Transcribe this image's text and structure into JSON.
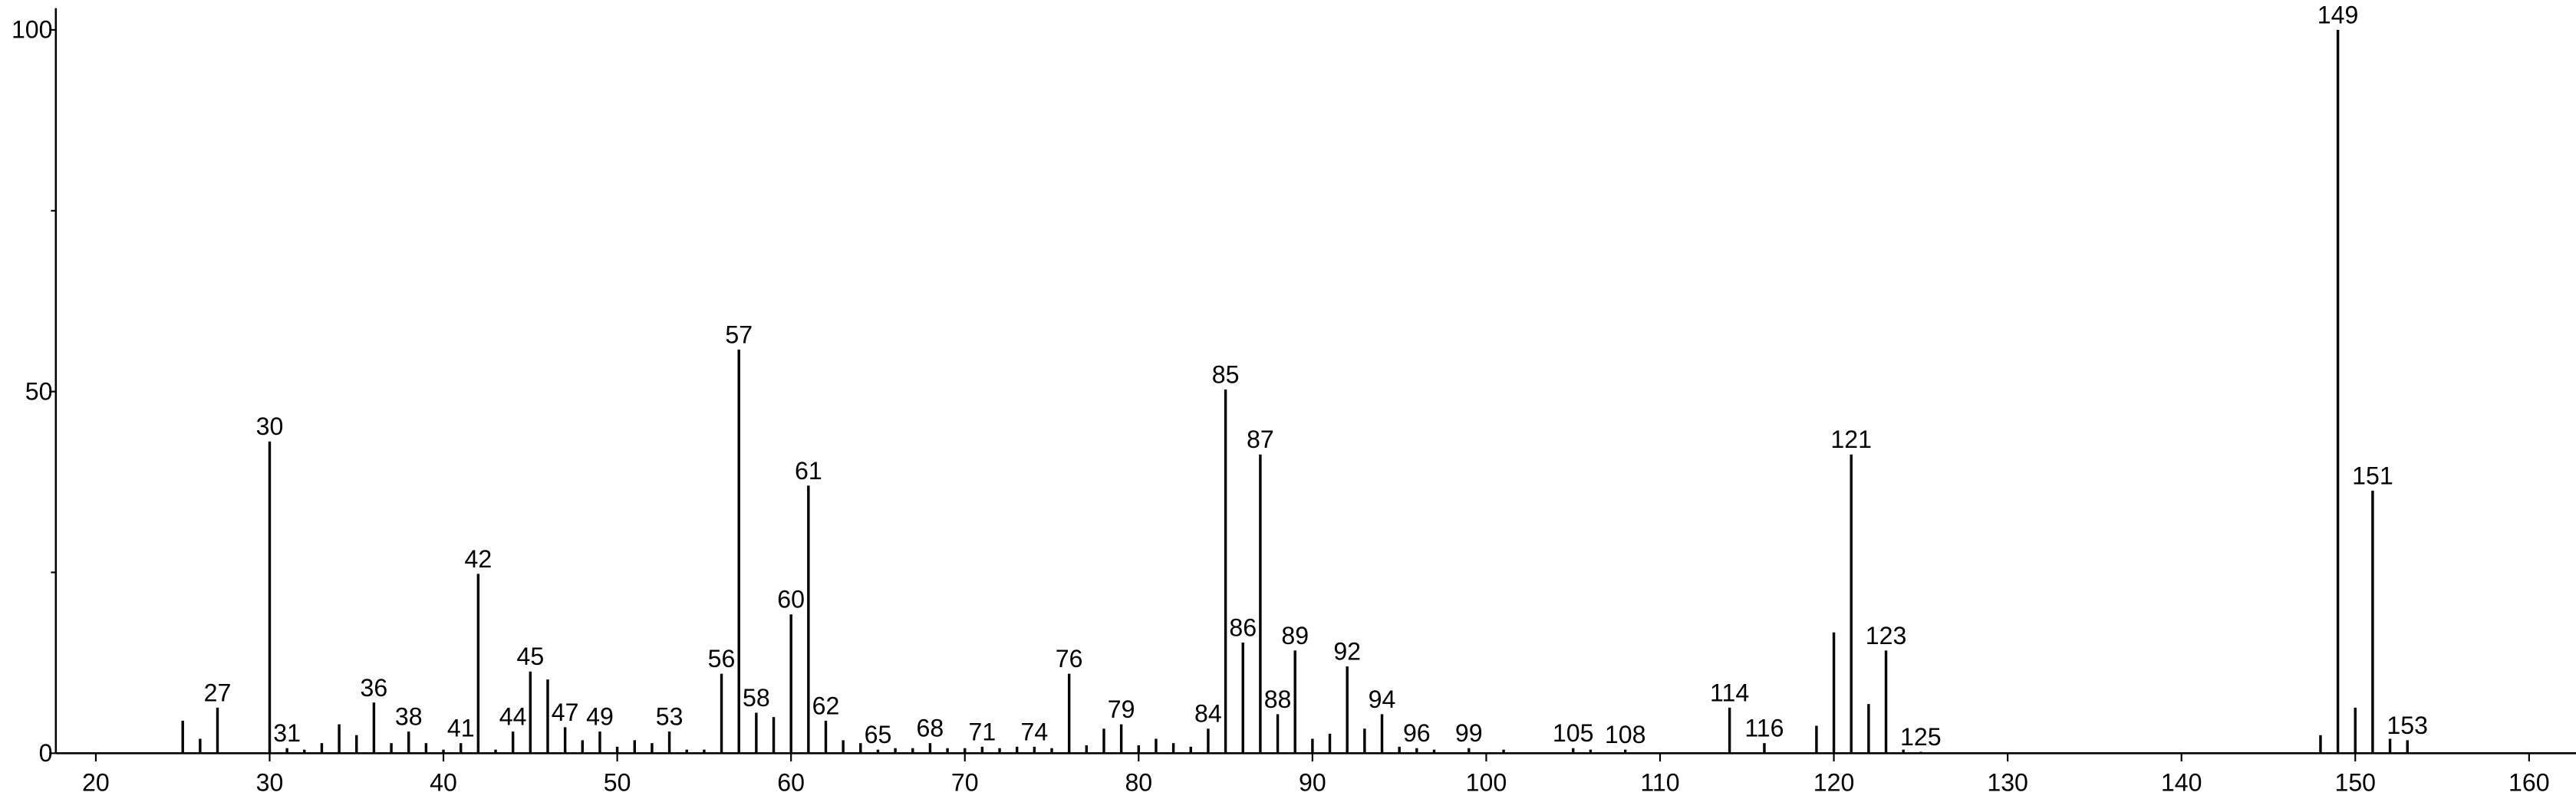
{
  "chart_data": {
    "type": "stem",
    "x": [
      25,
      26,
      27,
      30,
      31,
      32,
      33,
      34,
      35,
      36,
      37,
      38,
      39,
      40,
      41,
      42,
      43,
      44,
      45,
      46,
      47,
      48,
      49,
      50,
      51,
      52,
      53,
      54,
      55,
      56,
      57,
      58,
      59,
      60,
      61,
      62,
      63,
      64,
      65,
      66,
      67,
      68,
      69,
      70,
      71,
      72,
      73,
      74,
      75,
      76,
      77,
      78,
      79,
      80,
      81,
      82,
      83,
      84,
      85,
      86,
      87,
      88,
      89,
      90,
      91,
      92,
      93,
      94,
      95,
      96,
      97,
      99,
      101,
      105,
      106,
      108,
      114,
      116,
      119,
      120,
      121,
      122,
      123,
      124,
      125,
      148,
      149,
      150,
      151,
      152,
      153
    ],
    "values": [
      4.5,
      2,
      6.3,
      43.1,
      0.7,
      0.5,
      1.4,
      4,
      2.5,
      7,
      1.4,
      3,
      1.4,
      0.5,
      1.4,
      24.8,
      0.5,
      3,
      11.3,
      10.2,
      3.6,
      1.8,
      3,
      0.9,
      1.8,
      1.4,
      3,
      0.5,
      0.5,
      11,
      55.8,
      5.6,
      5,
      19.2,
      37,
      4.5,
      1.8,
      1.4,
      0.5,
      0.7,
      0.7,
      1.4,
      0.7,
      0.7,
      0.9,
      0.7,
      0.9,
      0.9,
      0.7,
      11,
      1.1,
      3.4,
      4,
      1.1,
      2,
      1.4,
      0.9,
      3.4,
      50.3,
      15.3,
      41.3,
      5.4,
      14.2,
      2,
      2.7,
      12,
      3.4,
      5.4,
      0.9,
      0.7,
      0.5,
      0.7,
      0.5,
      0.7,
      0.5,
      0.5,
      6.3,
      1.4,
      3.8,
      16.7,
      41.3,
      6.8,
      14.2,
      0.5,
      0.2,
      2.5,
      100,
      6.3,
      36.3,
      2,
      1.8
    ],
    "peak_labels": [
      null,
      null,
      27,
      30,
      31,
      null,
      null,
      null,
      null,
      36,
      null,
      38,
      null,
      null,
      41,
      42,
      null,
      44,
      45,
      null,
      47,
      null,
      49,
      null,
      null,
      null,
      53,
      null,
      null,
      56,
      57,
      58,
      null,
      60,
      61,
      62,
      null,
      null,
      65,
      null,
      null,
      68,
      null,
      null,
      71,
      null,
      null,
      74,
      null,
      76,
      null,
      null,
      79,
      null,
      null,
      null,
      null,
      84,
      85,
      86,
      87,
      88,
      89,
      null,
      null,
      92,
      null,
      94,
      null,
      96,
      null,
      99,
      null,
      105,
      null,
      108,
      114,
      116,
      null,
      null,
      121,
      null,
      123,
      null,
      125,
      null,
      149,
      null,
      151,
      null,
      153
    ],
    "color": "#000000",
    "xlim": [
      17.7,
      162.7
    ],
    "xticks": [
      20,
      30,
      40,
      50,
      60,
      70,
      80,
      90,
      100,
      110,
      120,
      130,
      140,
      150,
      160
    ],
    "ylim": [
      0,
      103
    ],
    "yticks": [
      0,
      50,
      100
    ],
    "minor_yticks": [
      25,
      75
    ]
  }
}
